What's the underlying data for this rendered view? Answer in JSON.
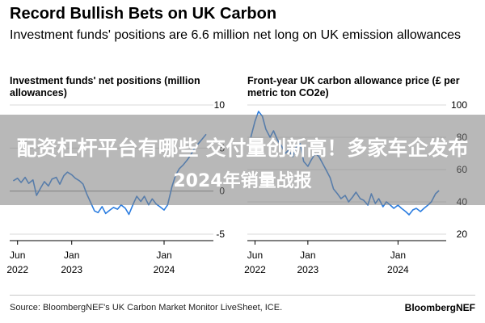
{
  "title": "Record Bullish Bets on UK Carbon",
  "subtitle": "Investment funds' positions are 6.6 million net long on UK emission allowances",
  "overlay": {
    "line1": "配资杠杆平台有哪些 交付量创新高！多家车企发布",
    "line2": "2024年销量战报"
  },
  "source": "Source: BloombergNEF's UK Carbon Market Monitor LiveSheet, ICE.",
  "brand": "BloombergNEF",
  "colors": {
    "line": "#2b7de0",
    "text": "#000000",
    "grid": "#d9d9d9"
  },
  "chart_data": [
    {
      "type": "line",
      "title": "Investment funds' net positions (million allowances)",
      "ylim": [
        -5,
        10
      ],
      "yticks": [
        "10",
        "5",
        "0",
        "-5"
      ],
      "yticks_values": [
        10,
        5,
        0,
        -5
      ],
      "xticks": [
        [
          "Jun",
          "2022"
        ],
        [
          "Jan",
          "2023"
        ],
        [
          "Jan",
          "2024"
        ]
      ],
      "xticks_values": [
        "2022-06",
        "2023-01",
        "2024-01"
      ],
      "grid": true,
      "zero_line": true,
      "series": [
        {
          "x": [
            "2022-05-15",
            "2022-06-01",
            "2022-06-15",
            "2022-07-01",
            "2022-07-15",
            "2022-08-01",
            "2022-08-15",
            "2022-09-01",
            "2022-09-15",
            "2022-10-01",
            "2022-10-15",
            "2022-11-01",
            "2022-11-15",
            "2022-12-01",
            "2022-12-15",
            "2023-01-01",
            "2023-01-15",
            "2023-02-01",
            "2023-02-15",
            "2023-03-01",
            "2023-03-15",
            "2023-04-01",
            "2023-04-15",
            "2023-05-01",
            "2023-05-15",
            "2023-06-01",
            "2023-06-15",
            "2023-07-01",
            "2023-07-15",
            "2023-08-01",
            "2023-08-15",
            "2023-09-01",
            "2023-09-15",
            "2023-10-01",
            "2023-10-15",
            "2023-11-01",
            "2023-11-15",
            "2023-12-01",
            "2023-12-15",
            "2024-01-01",
            "2024-01-15",
            "2024-02-01",
            "2024-02-15",
            "2024-03-01",
            "2024-03-15",
            "2024-04-01",
            "2024-04-15",
            "2024-05-01",
            "2024-05-15",
            "2024-06-01",
            "2024-06-15"
          ],
          "y": [
            1.2,
            1.5,
            1.0,
            1.6,
            0.9,
            1.3,
            -0.5,
            0.4,
            1.1,
            0.6,
            1.4,
            1.6,
            0.8,
            1.8,
            2.2,
            1.9,
            1.5,
            1.2,
            0.8,
            -0.3,
            -1.2,
            -2.3,
            -2.5,
            -1.8,
            -2.6,
            -2.2,
            -1.9,
            -2.1,
            -1.6,
            -2.0,
            -2.7,
            -1.5,
            -0.6,
            -1.2,
            -0.6,
            -1.6,
            -0.9,
            -1.5,
            -1.8,
            -2.2,
            -1.6,
            0.5,
            1.8,
            2.6,
            3.0,
            3.6,
            4.2,
            5.0,
            5.5,
            6.1,
            6.6
          ]
        }
      ]
    },
    {
      "type": "line",
      "title": "Front-year UK carbon allowance price (£ per metric ton CO2e)",
      "ylim": [
        20,
        100
      ],
      "yticks": [
        "100",
        "80",
        "60",
        "40",
        "20"
      ],
      "yticks_values": [
        100,
        80,
        60,
        40,
        20
      ],
      "xticks": [
        [
          "Jun",
          "2022"
        ],
        [
          "Jan",
          "2023"
        ],
        [
          "Jan",
          "2024"
        ]
      ],
      "xticks_values": [
        "2022-06",
        "2023-01",
        "2024-01"
      ],
      "grid": true,
      "series": [
        {
          "x": [
            "2022-05-15",
            "2022-06-01",
            "2022-06-15",
            "2022-07-01",
            "2022-07-15",
            "2022-08-01",
            "2022-08-15",
            "2022-09-01",
            "2022-09-15",
            "2022-10-01",
            "2022-10-15",
            "2022-11-01",
            "2022-11-15",
            "2022-12-01",
            "2022-12-15",
            "2023-01-01",
            "2023-01-15",
            "2023-02-01",
            "2023-02-15",
            "2023-03-01",
            "2023-03-15",
            "2023-04-01",
            "2023-04-15",
            "2023-05-01",
            "2023-05-15",
            "2023-06-01",
            "2023-06-15",
            "2023-07-01",
            "2023-07-15",
            "2023-08-01",
            "2023-08-15",
            "2023-09-01",
            "2023-09-15",
            "2023-10-01",
            "2023-10-15",
            "2023-11-01",
            "2023-11-15",
            "2023-12-01",
            "2023-12-15",
            "2024-01-01",
            "2024-01-15",
            "2024-02-01",
            "2024-02-15",
            "2024-03-01",
            "2024-03-15",
            "2024-04-01",
            "2024-04-15",
            "2024-05-01",
            "2024-05-15",
            "2024-06-01",
            "2024-06-15"
          ],
          "y": [
            80,
            90,
            96,
            93,
            85,
            80,
            84,
            78,
            75,
            70,
            72,
            68,
            74,
            76,
            65,
            62,
            66,
            70,
            68,
            64,
            60,
            55,
            48,
            45,
            42,
            44,
            40,
            43,
            46,
            42,
            41,
            38,
            45,
            39,
            42,
            37,
            40,
            38,
            36,
            38,
            36,
            34,
            32,
            35,
            36,
            34,
            36,
            38,
            40,
            45,
            47
          ]
        }
      ]
    }
  ]
}
